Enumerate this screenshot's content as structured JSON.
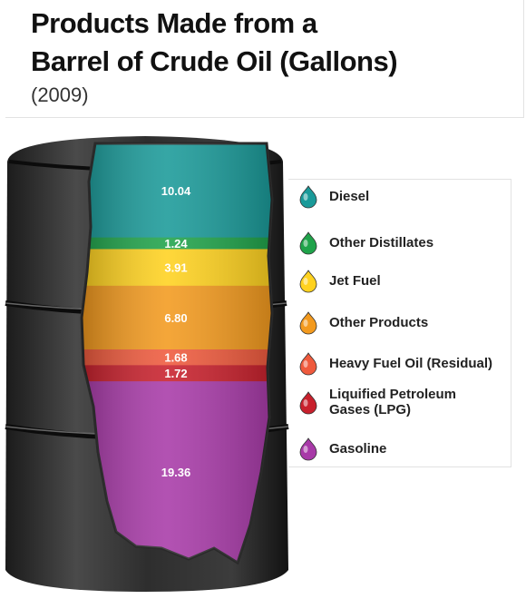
{
  "title_line1": "Products Made from a",
  "title_line2": "Barrel of Crude Oil (Gallons)",
  "subtitle": "(2009)",
  "chart_data": {
    "type": "bar",
    "title": "Products Made from a Barrel of Crude Oil (Gallons)",
    "subtitle": "(2009)",
    "categories": [
      "Diesel",
      "Other Distillates",
      "Jet Fuel",
      "Other Products",
      "Heavy Fuel Oil (Residual)",
      "Liquified Petroleum Gases (LPG)",
      "Gasoline"
    ],
    "values": [
      10.04,
      1.24,
      3.91,
      6.8,
      1.68,
      1.72,
      19.36
    ],
    "value_labels": [
      "10.04",
      "1.24",
      "3.91",
      "6.80",
      "1.68",
      "1.72",
      "19.36"
    ],
    "legend": [
      {
        "label": "Diesel",
        "color": "#1a9a99"
      },
      {
        "label": "Other Distillates",
        "color": "#1fa34a"
      },
      {
        "label": "Jet Fuel",
        "color": "#ffd21f"
      },
      {
        "label": "Other Products",
        "color": "#f39a1e"
      },
      {
        "label": "Heavy Fuel Oil  (Residual)",
        "color": "#ef5a3d"
      },
      {
        "label": "Liquified Petroleum\nGases (LPG)",
        "color": "#c8202c"
      },
      {
        "label": "Gasoline",
        "color": "#a83aa8"
      }
    ],
    "legend_placement": "right",
    "stacked": true
  }
}
